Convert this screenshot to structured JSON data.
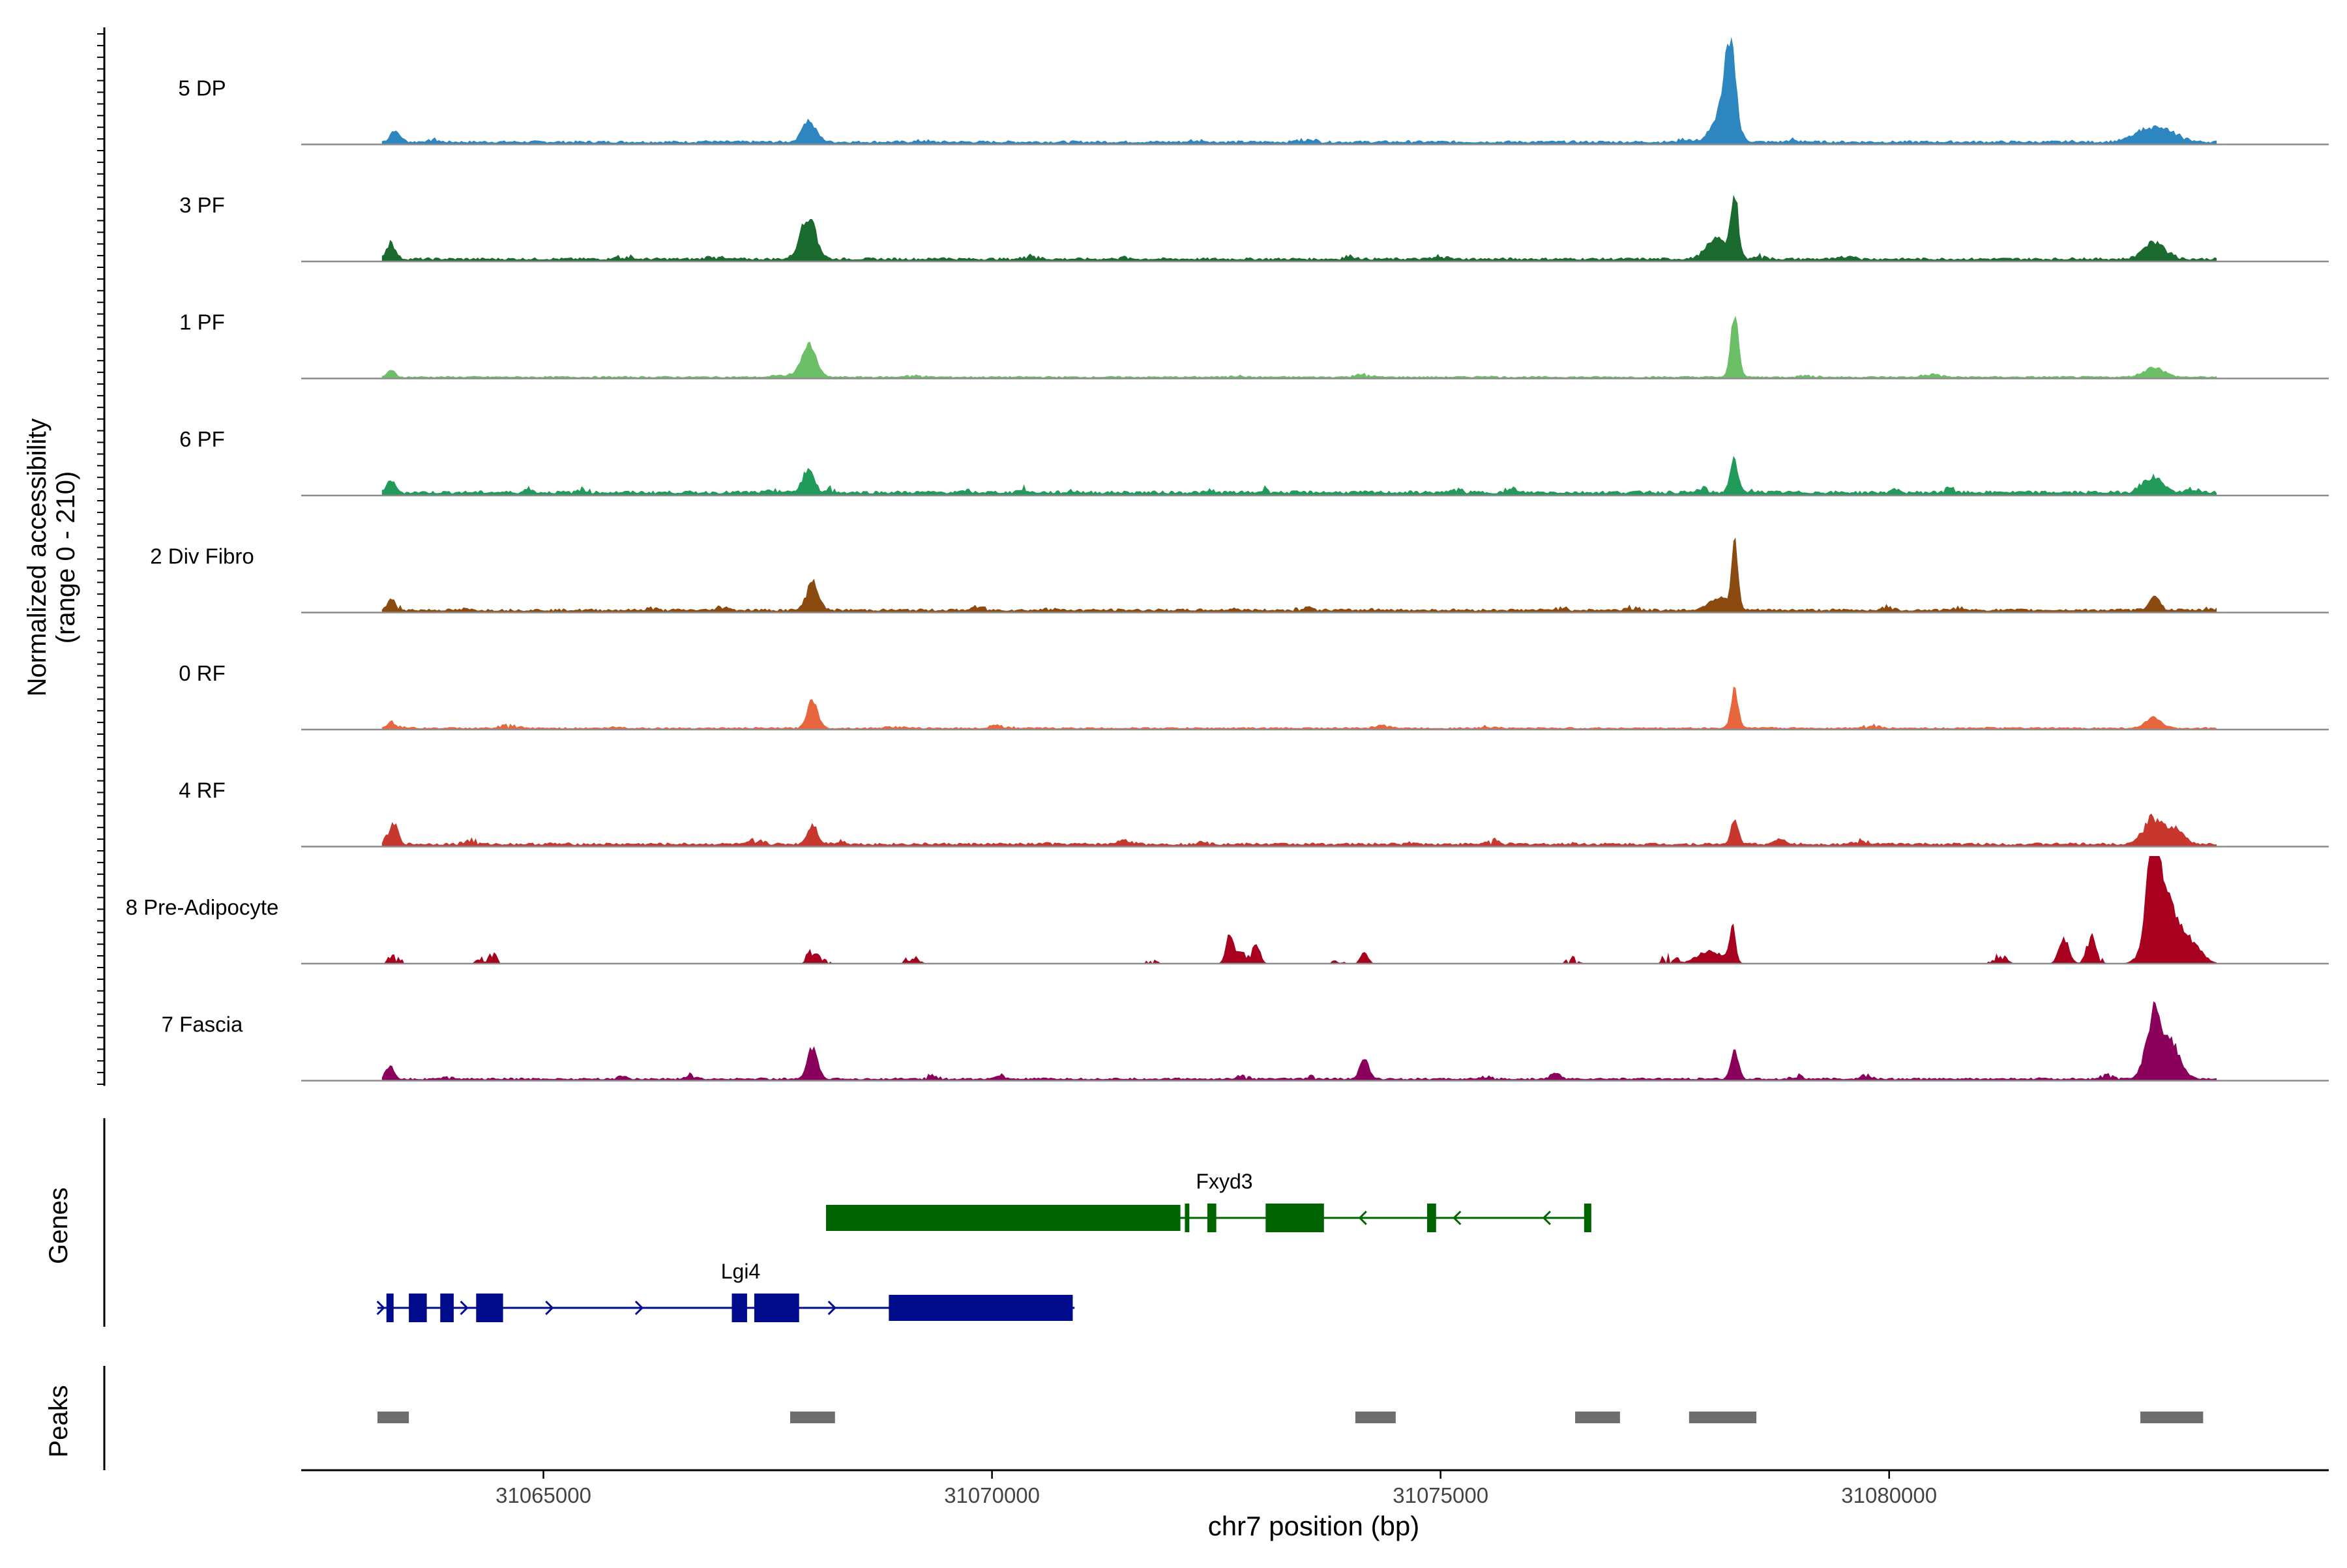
{
  "chart_data": {
    "type": "area",
    "title": "",
    "region": {
      "chromosome": "chr7",
      "start": 31062300,
      "end": 31084900
    },
    "xlabel": "chr7 position (bp)",
    "ylabel_line1": "Normalized accessibility",
    "ylabel_line2": "(range 0 - 210)",
    "ylim": [
      0,
      210
    ],
    "x_ticks": [
      31065000,
      31070000,
      31075000,
      31080000
    ],
    "x_tick_labels": [
      "31065000",
      "31070000",
      "31075000",
      "31080000"
    ],
    "tracks": [
      {
        "name": "5 DP",
        "color": "#2E86C1",
        "baseline": 8,
        "noise_step": 600,
        "noise": 6,
        "peaks": [
          [
            31063350,
            80,
            22
          ],
          [
            31067950,
            100,
            40
          ],
          [
            31078230,
            80,
            165
          ],
          [
            31078150,
            160,
            60
          ],
          [
            31082950,
            260,
            30
          ]
        ]
      },
      {
        "name": "3 PF",
        "color": "#1B6B30",
        "baseline": 8,
        "noise_step": 500,
        "noise": 8,
        "peaks": [
          [
            31063300,
            70,
            32
          ],
          [
            31067950,
            120,
            85
          ],
          [
            31078280,
            60,
            118
          ],
          [
            31078080,
            160,
            40
          ],
          [
            31082950,
            160,
            35
          ]
        ]
      },
      {
        "name": "1 PF",
        "color": "#6CBF67",
        "baseline": 5,
        "noise_step": 700,
        "noise": 5,
        "peaks": [
          [
            31063300,
            60,
            14
          ],
          [
            31067960,
            110,
            62
          ],
          [
            31078280,
            60,
            132
          ],
          [
            31082950,
            160,
            18
          ]
        ]
      },
      {
        "name": "6 PF",
        "color": "#229A5A",
        "baseline": 10,
        "noise_step": 300,
        "noise": 12,
        "peaks": [
          [
            31063300,
            60,
            25
          ],
          [
            31067950,
            90,
            45
          ],
          [
            31078270,
            60,
            68
          ],
          [
            31082950,
            140,
            30
          ]
        ]
      },
      {
        "name": "2 Div Fibro",
        "color": "#8B4A10",
        "baseline": 8,
        "noise_step": 400,
        "noise": 8,
        "peaks": [
          [
            31063300,
            60,
            16
          ],
          [
            31068000,
            90,
            60
          ],
          [
            31078280,
            50,
            125
          ],
          [
            31078100,
            150,
            25
          ],
          [
            31082960,
            80,
            30
          ]
        ]
      },
      {
        "name": "0 RF",
        "color": "#E8663D",
        "baseline": 5,
        "noise_step": 600,
        "noise": 6,
        "peaks": [
          [
            31063300,
            50,
            14
          ],
          [
            31068000,
            80,
            60
          ],
          [
            31078280,
            60,
            75
          ],
          [
            31082950,
            120,
            20
          ]
        ]
      },
      {
        "name": "4 RF",
        "color": "#C8372D",
        "baseline": 8,
        "noise_step": 450,
        "noise": 10,
        "peaks": [
          [
            31063330,
            70,
            38
          ],
          [
            31068000,
            80,
            40
          ],
          [
            31078280,
            60,
            50
          ],
          [
            31082950,
            160,
            45
          ],
          [
            31083200,
            120,
            30
          ]
        ]
      },
      {
        "name": "8 Pre-Adipocyte",
        "color": "#A8001F",
        "baseline": 0,
        "noise_step": 520,
        "noise": 18,
        "peaks": [
          [
            31064450,
            30,
            20
          ],
          [
            31067950,
            40,
            20
          ],
          [
            31072650,
            60,
            58
          ],
          [
            31072950,
            60,
            35
          ],
          [
            31074150,
            60,
            22
          ],
          [
            31078250,
            50,
            70
          ],
          [
            31078000,
            200,
            25
          ],
          [
            31081950,
            80,
            50
          ],
          [
            31082250,
            70,
            45
          ],
          [
            31082950,
            90,
            210
          ],
          [
            31083050,
            200,
            130
          ],
          [
            31083350,
            180,
            40
          ]
        ]
      },
      {
        "name": "7 Fascia",
        "color": "#8B005A",
        "baseline": 6,
        "noise_step": 380,
        "noise": 10,
        "peaks": [
          [
            31063300,
            60,
            24
          ],
          [
            31068000,
            80,
            60
          ],
          [
            31074150,
            70,
            40
          ],
          [
            31078280,
            60,
            55
          ],
          [
            31082950,
            120,
            125
          ],
          [
            31083150,
            140,
            60
          ]
        ]
      }
    ],
    "genes_label": "Genes",
    "genes": [
      {
        "name": "Fxyd3",
        "strand": "-",
        "color": "#006400",
        "start": 31068150,
        "end": 31076650,
        "exons": [
          [
            31068150,
            31072100,
            "utr"
          ],
          [
            31072150,
            31072200,
            "cds"
          ],
          [
            31072400,
            31072500,
            "cds"
          ],
          [
            31073050,
            31073700,
            "cds"
          ],
          [
            31074850,
            31074950,
            "cds"
          ],
          [
            31076600,
            31076680,
            "cds"
          ]
        ],
        "arrows": [
          31074100,
          31075150,
          31076150
        ]
      },
      {
        "name": "Lgi4",
        "strand": "+",
        "color": "#000C8C",
        "start": 31063150,
        "end": 31070920,
        "exons": [
          [
            31063250,
            31063330,
            "cds"
          ],
          [
            31063500,
            31063700,
            "cds"
          ],
          [
            31063850,
            31064000,
            "cds"
          ],
          [
            31064250,
            31064550,
            "cds"
          ],
          [
            31067100,
            31067270,
            "cds"
          ],
          [
            31067350,
            31067850,
            "cds"
          ],
          [
            31068850,
            31070900,
            "utr"
          ]
        ],
        "arrows": [
          31063220,
          31064150,
          31065100,
          31066100,
          31068250
        ]
      }
    ],
    "peaks_label": "Peaks",
    "peaks_color": "#6E6E6E",
    "peaks": [
      [
        31063150,
        31063500
      ],
      [
        31067750,
        31068250
      ],
      [
        31074050,
        31074500
      ],
      [
        31076500,
        31077000
      ],
      [
        31077770,
        31078520
      ],
      [
        31082800,
        31083500
      ]
    ]
  }
}
